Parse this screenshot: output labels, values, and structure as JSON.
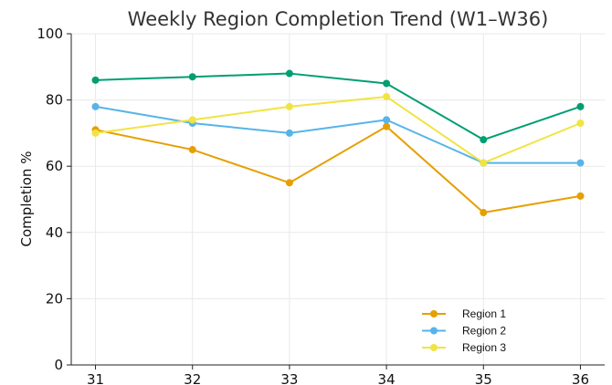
{
  "chart_data": {
    "type": "line",
    "title": "Weekly Region Completion Trend (W1–W36)",
    "xlabel": "",
    "ylabel": "Completion %",
    "x": [
      31,
      32,
      33,
      34,
      35,
      36
    ],
    "xlim": [
      30.75,
      36.25
    ],
    "ylim": [
      0,
      100
    ],
    "yticks": [
      0,
      20,
      40,
      60,
      80,
      100
    ],
    "grid": true,
    "legend_position": "lower-right",
    "series": [
      {
        "name": "Region 1",
        "color": "#e69f00",
        "values": [
          71,
          65,
          55,
          72,
          46,
          51
        ]
      },
      {
        "name": "Region 2",
        "color": "#56b4e9",
        "values": [
          78,
          73,
          70,
          74,
          61,
          61
        ]
      },
      {
        "name": "Region 3",
        "color": "#009e73",
        "values": [
          86,
          87,
          88,
          85,
          68,
          78
        ]
      },
      {
        "name": "Region 3",
        "color": "#f0e442",
        "values": [
          70,
          74,
          78,
          81,
          61,
          73
        ]
      }
    ]
  }
}
